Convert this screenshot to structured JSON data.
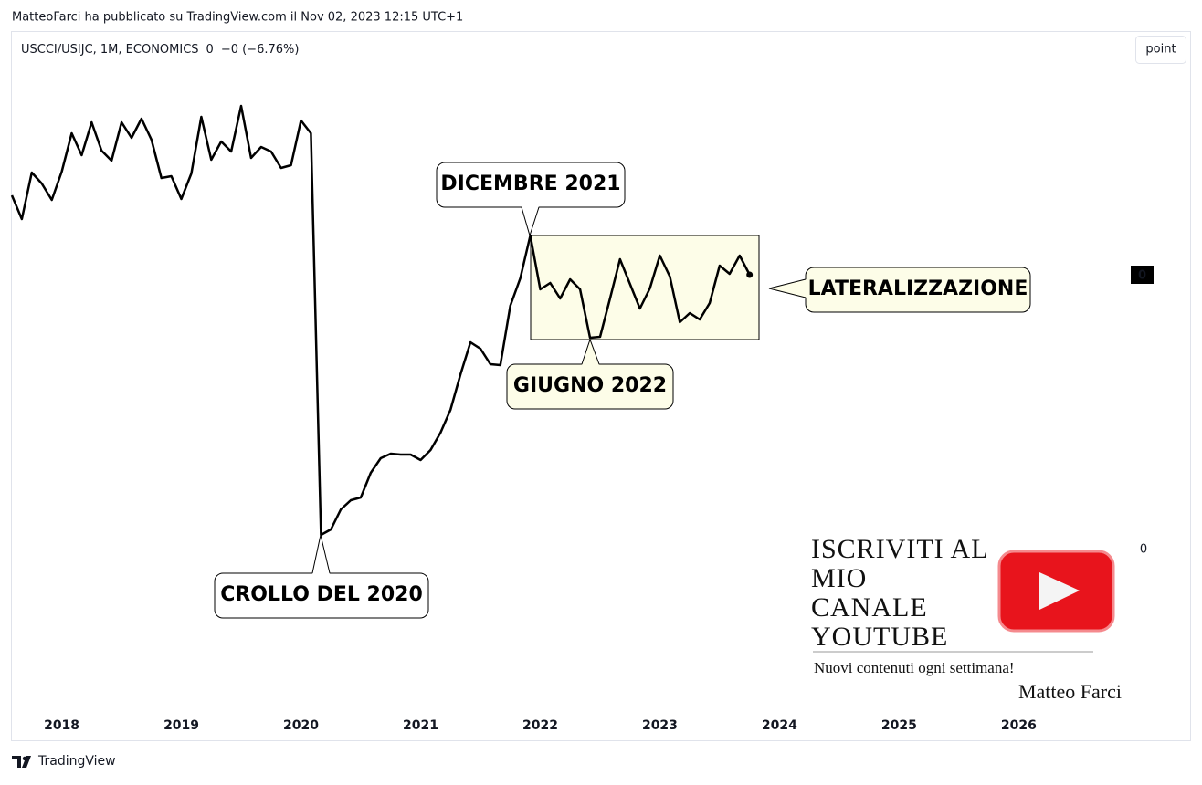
{
  "header": "MatteoFarci ha pubblicato su TradingView.com il Nov 02, 2023 12:15 UTC+1",
  "footer": "TradingView",
  "chart_data": {
    "type": "line",
    "legend": {
      "price": "0",
      "change": "−0 (−6.76%)"
    },
    "button": "point",
    "last_value_label": "0",
    "x": [
      "2017-08",
      "2017-09",
      "2017-10",
      "2017-11",
      "2017-12",
      "2018-01",
      "2018-02",
      "2018-03",
      "2018-04",
      "2018-05",
      "2018-06",
      "2018-07",
      "2018-08",
      "2018-09",
      "2018-10",
      "2018-11",
      "2018-12",
      "2019-01",
      "2019-02",
      "2019-03",
      "2019-04",
      "2019-05",
      "2019-06",
      "2019-07",
      "2019-08",
      "2019-09",
      "2019-10",
      "2019-11",
      "2019-12",
      "2020-01",
      "2020-02",
      "2020-03",
      "2020-04",
      "2020-05",
      "2020-06",
      "2020-07",
      "2020-08",
      "2020-09",
      "2020-10",
      "2020-11",
      "2020-12",
      "2021-01",
      "2021-02",
      "2021-03",
      "2021-04",
      "2021-05",
      "2021-06",
      "2021-07",
      "2021-08",
      "2021-09",
      "2021-10",
      "2021-11",
      "2021-12",
      "2022-01",
      "2022-02",
      "2022-03",
      "2022-04",
      "2022-05",
      "2022-06",
      "2022-07",
      "2022-08",
      "2022-09",
      "2022-10",
      "2022-11",
      "2022-12",
      "2023-01",
      "2023-02",
      "2023-03",
      "2023-04",
      "2023-05",
      "2023-06",
      "2023-07",
      "2023-08",
      "2023-09",
      "2023-10"
    ],
    "series": [
      {
        "name": "USCCI/USIJC, 1M, ECONOMICS",
        "color": "#000000",
        "values": [
          0.388,
          0.362,
          0.413,
          0.401,
          0.383,
          0.414,
          0.456,
          0.432,
          0.468,
          0.437,
          0.426,
          0.468,
          0.451,
          0.472,
          0.449,
          0.407,
          0.409,
          0.384,
          0.412,
          0.474,
          0.427,
          0.447,
          0.436,
          0.486,
          0.429,
          0.441,
          0.436,
          0.418,
          0.421,
          0.47,
          0.456,
          0.016,
          0.022,
          0.044,
          0.054,
          0.057,
          0.084,
          0.1,
          0.105,
          0.104,
          0.104,
          0.098,
          0.109,
          0.128,
          0.153,
          0.192,
          0.227,
          0.22,
          0.203,
          0.202,
          0.267,
          0.297,
          0.344,
          0.285,
          0.292,
          0.275,
          0.296,
          0.285,
          0.232,
          0.233,
          0.275,
          0.318,
          0.291,
          0.264,
          0.286,
          0.322,
          0.299,
          0.249,
          0.259,
          0.252,
          0.27,
          0.311,
          0.302,
          0.322,
          0.301
        ]
      }
    ],
    "xlim": [
      "2017-08",
      "2027-05"
    ],
    "xticks": [
      2018,
      2019,
      2020,
      2021,
      2022,
      2023,
      2024,
      2025,
      2026
    ],
    "ylim": [
      -0.21,
      0.567
    ],
    "yticks": [
      0
    ],
    "grid": false,
    "annotations": {
      "december": "DICEMBRE 2021",
      "june": "GIUGNO 2022",
      "crash": "CROLLO DEL 2020",
      "range": "LATERALIZZAZIONE"
    },
    "promo": {
      "title": [
        "ISCRIVITI AL",
        "MIO",
        "CANALE",
        "YOUTUBE"
      ],
      "subtitle": "Nuovi contenuti ogni settimana!",
      "author": "Matteo Farci"
    }
  }
}
